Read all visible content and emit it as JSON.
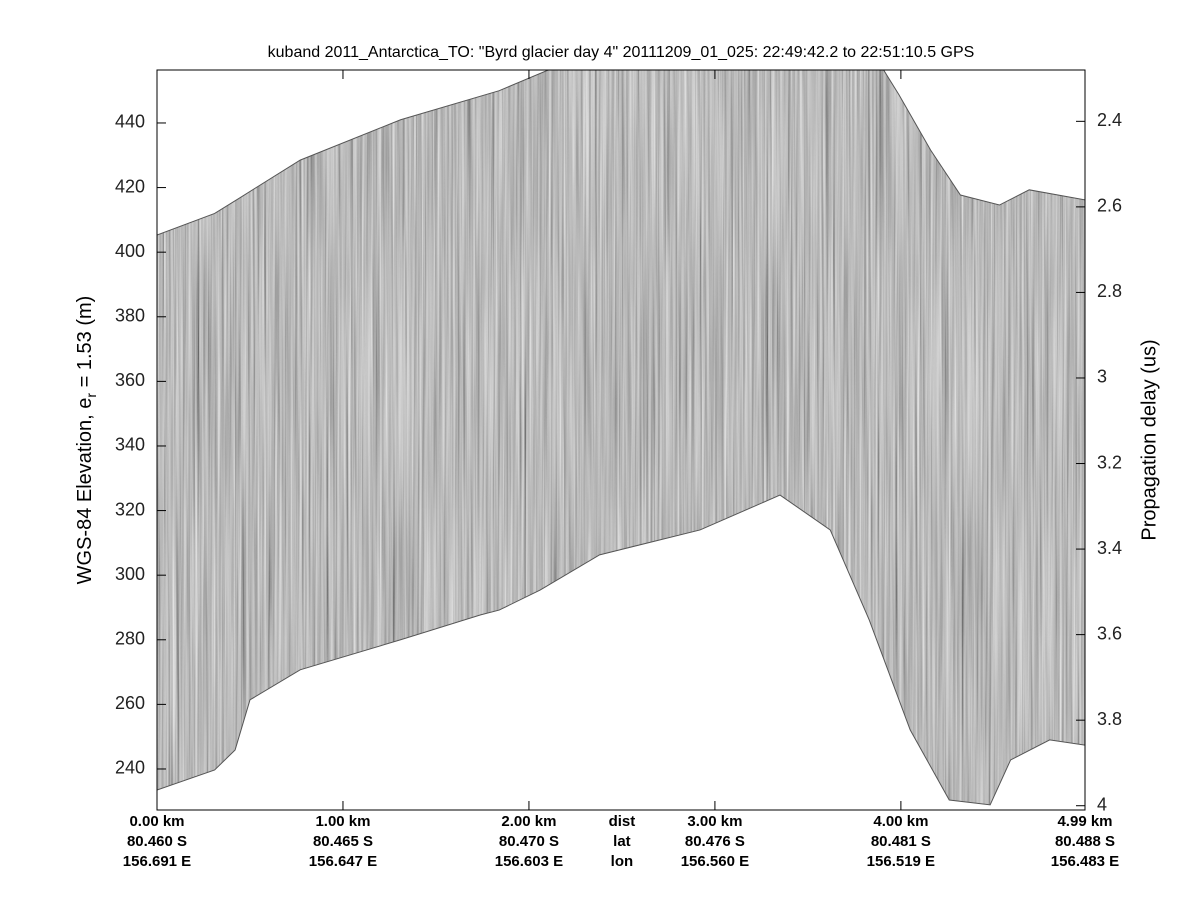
{
  "chart_data": {
    "type": "echogram",
    "title": "kuband 2011_Antarctica_TO: \"Byrd glacier day 4\"  20111209_01_025: 22:49:42.2 to 22:51:10.5 GPS",
    "ylabel_parts": [
      "WGS-84 Elevation, e",
      "r",
      " = 1.53 (m)"
    ],
    "y2label": "Propagation delay (us)",
    "xlim": [
      0,
      4.99
    ],
    "xticks": [
      {
        "value": 0,
        "label": "0.00 km"
      },
      {
        "value": 1,
        "label": "1.00 km"
      },
      {
        "value": 2,
        "label": "2.00 km"
      },
      {
        "value": 3,
        "label": "3.00 km"
      },
      {
        "value": 4,
        "label": "4.00 km"
      },
      {
        "value": 4.99,
        "label": "4.99 km"
      }
    ],
    "lat_labels": [
      "80.460 S",
      "80.465 S",
      "80.470 S",
      "80.476 S",
      "80.481 S",
      "80.488 S"
    ],
    "lon_labels": [
      "156.691 E",
      "156.647 E",
      "156.603 E",
      "156.560 E",
      "156.519 E",
      "156.483 E"
    ],
    "x_row_labels": [
      "dist",
      "lat",
      "lon"
    ],
    "ylim": [
      227.3,
      456.4
    ],
    "yticks": [
      240,
      260,
      280,
      300,
      320,
      340,
      360,
      380,
      400,
      420,
      440
    ],
    "y2lim": [
      2.28,
      4.01
    ],
    "y2_reversed": true,
    "y2ticks": [
      2.4,
      2.6,
      2.8,
      3,
      3.2,
      3.4,
      3.6,
      3.8,
      4
    ],
    "top_x": [
      0,
      0.31,
      0.45,
      0.77,
      1.31,
      1.84,
      2.17,
      3.89,
      3.99,
      4.16,
      4.32,
      4.53,
      4.69,
      4.99
    ],
    "top": [
      405.3,
      412,
      417,
      428.5,
      441,
      450,
      458,
      458,
      448.7,
      431.6,
      417.7,
      414.6,
      419.3,
      416.2
    ],
    "bottom_x": [
      0,
      0.31,
      0.42,
      0.5,
      0.77,
      1.31,
      1.74,
      1.84,
      2.06,
      2.38,
      2.92,
      3.35,
      3.62,
      3.83,
      4.05,
      4.26,
      4.48,
      4.59,
      4.8,
      4.99
    ],
    "bottom": [
      233.5,
      239.7,
      245.9,
      261.4,
      270.7,
      280,
      287.7,
      289.2,
      295.4,
      306.3,
      314,
      324.8,
      314,
      286.1,
      252.1,
      230.4,
      228.9,
      242.8,
      249,
      247.4
    ],
    "color": "#8a8a8a"
  }
}
